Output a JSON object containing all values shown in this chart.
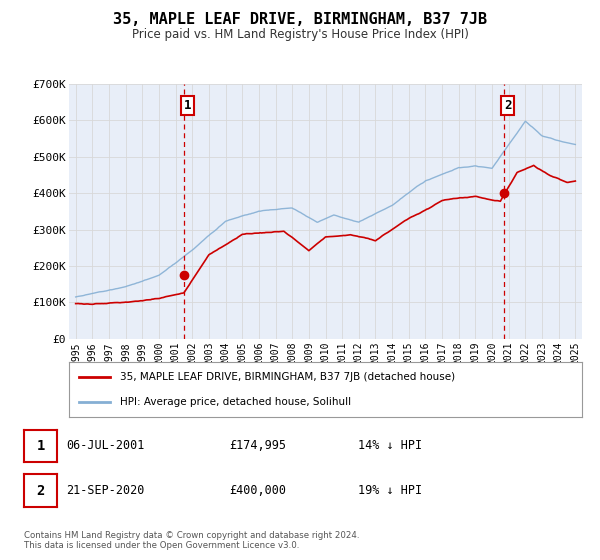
{
  "title": "35, MAPLE LEAF DRIVE, BIRMINGHAM, B37 7JB",
  "subtitle": "Price paid vs. HM Land Registry's House Price Index (HPI)",
  "background_color": "#ffffff",
  "plot_bg_color": "#e8eef8",
  "ylim": [
    0,
    700000
  ],
  "yticks": [
    0,
    100000,
    200000,
    300000,
    400000,
    500000,
    600000,
    700000
  ],
  "ytick_labels": [
    "£0",
    "£100K",
    "£200K",
    "£300K",
    "£400K",
    "£500K",
    "£600K",
    "£700K"
  ],
  "xlim_start": 1994.6,
  "xlim_end": 2025.4,
  "xticks": [
    1995,
    1996,
    1997,
    1998,
    1999,
    2000,
    2001,
    2002,
    2003,
    2004,
    2005,
    2006,
    2007,
    2008,
    2009,
    2010,
    2011,
    2012,
    2013,
    2014,
    2015,
    2016,
    2017,
    2018,
    2019,
    2020,
    2021,
    2022,
    2023,
    2024,
    2025
  ],
  "sale1_x": 2001.52,
  "sale1_y": 174995,
  "sale2_x": 2020.73,
  "sale2_y": 400000,
  "sale_color": "#cc0000",
  "hpi_color": "#85afd4",
  "legend_label1": "35, MAPLE LEAF DRIVE, BIRMINGHAM, B37 7JB (detached house)",
  "legend_label2": "HPI: Average price, detached house, Solihull",
  "annotation1_label": "1",
  "annotation2_label": "2",
  "table_row1": [
    "1",
    "06-JUL-2001",
    "£174,995",
    "14% ↓ HPI"
  ],
  "table_row2": [
    "2",
    "21-SEP-2020",
    "£400,000",
    "19% ↓ HPI"
  ],
  "footer": "Contains HM Land Registry data © Crown copyright and database right 2024.\nThis data is licensed under the Open Government Licence v3.0.",
  "grid_color": "#d8d8d8",
  "vline_color": "#cc0000"
}
